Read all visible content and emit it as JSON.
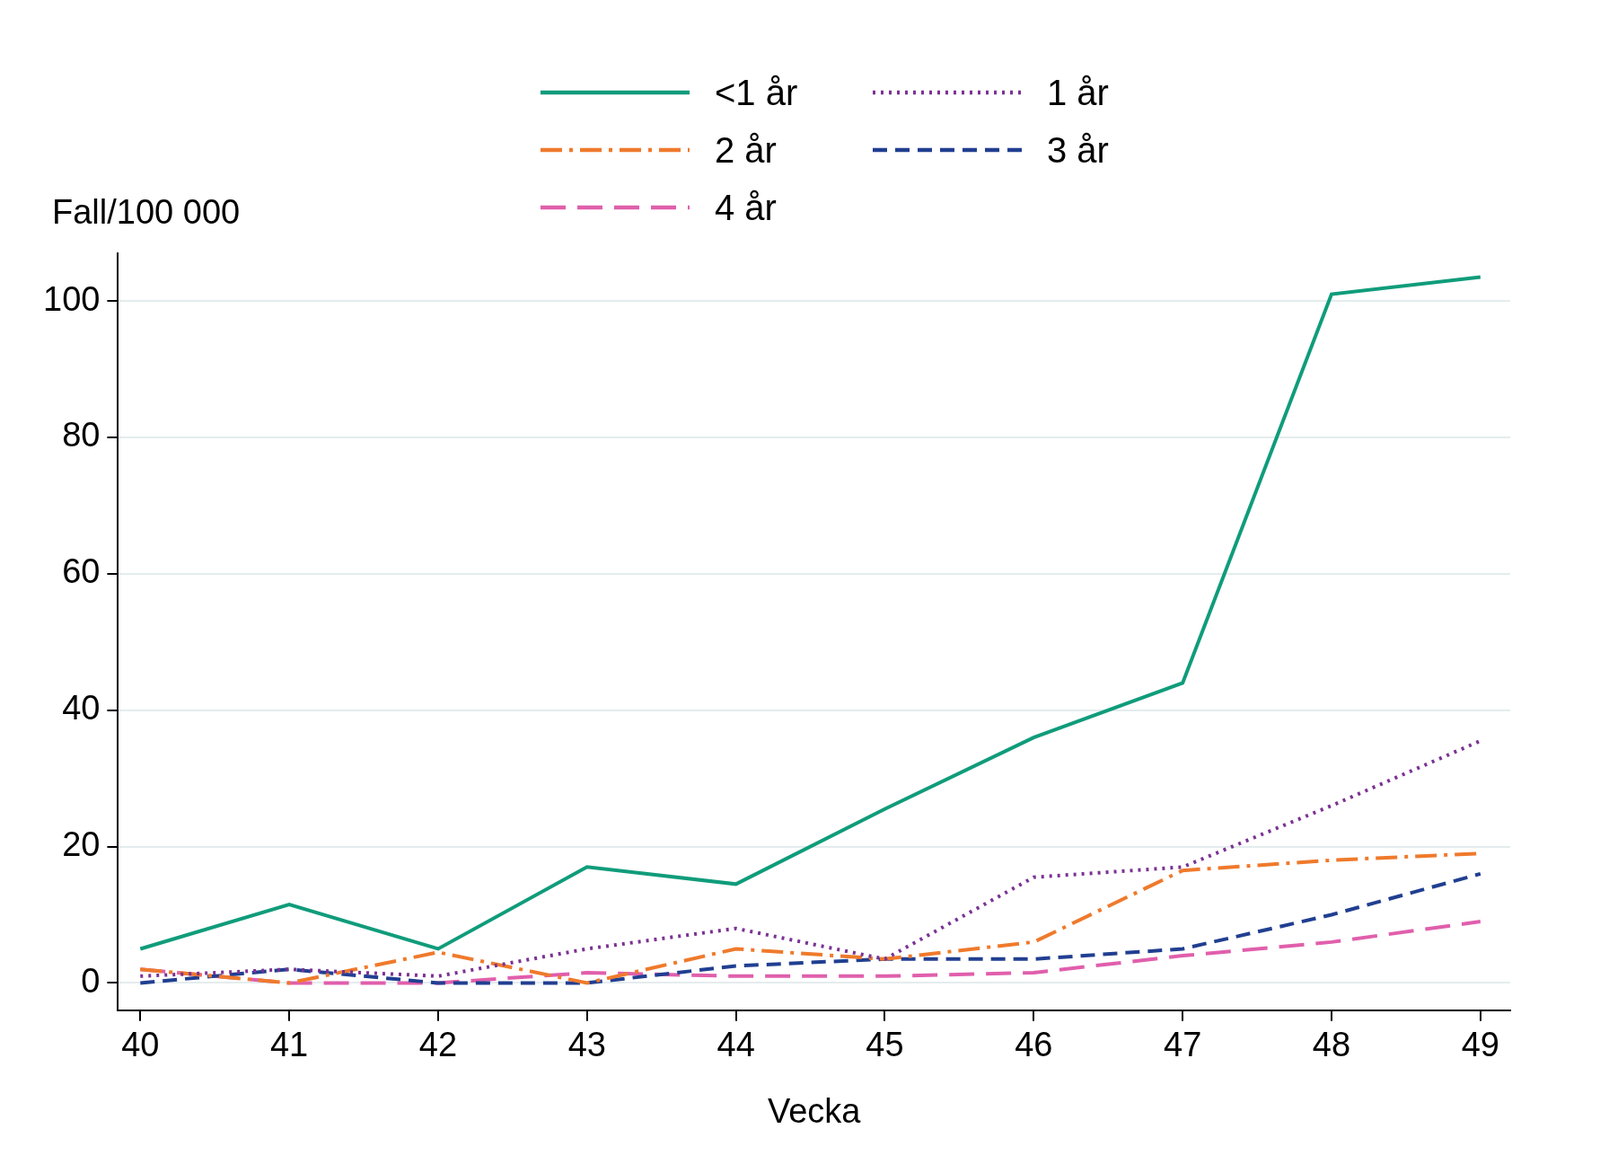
{
  "chart_data": {
    "type": "line",
    "x_label": "Vecka",
    "y_label": "Fall/100 000",
    "x": [
      40,
      41,
      42,
      43,
      44,
      45,
      46,
      47,
      48,
      49
    ],
    "series": [
      {
        "name": "<1 år",
        "color": "#109c7b",
        "line_style": "solid",
        "values": [
          5,
          11.5,
          5,
          17,
          14.5,
          25.5,
          36,
          44,
          101,
          103.5
        ]
      },
      {
        "name": "1 år",
        "color": "#7b3294",
        "line_style": "dotted",
        "values": [
          1,
          2,
          1,
          5,
          8,
          3.5,
          15.5,
          17,
          26,
          35.5
        ]
      },
      {
        "name": "2 år",
        "color": "#ef7a2c",
        "line_style": "dashdot",
        "values": [
          2,
          0,
          4.5,
          0,
          5,
          3.5,
          6,
          16.5,
          18,
          19
        ]
      },
      {
        "name": "3 år",
        "color": "#213f91",
        "line_style": "dashed",
        "values": [
          0,
          2,
          0,
          0,
          2.5,
          3.5,
          3.5,
          5,
          10,
          16
        ]
      },
      {
        "name": "4 år",
        "color": "#e05fac",
        "line_style": "longdash",
        "values": [
          2,
          0,
          0,
          1.5,
          1,
          1,
          1.5,
          4,
          6,
          9
        ]
      }
    ],
    "xlim": [
      39.85,
      49.2
    ],
    "xticks": [
      40,
      41,
      42,
      43,
      44,
      45,
      46,
      47,
      48,
      49
    ],
    "ylim": [
      -4,
      107
    ],
    "yticks": [
      0,
      20,
      40,
      60,
      80,
      100
    ],
    "grid": true,
    "legend": "top"
  }
}
